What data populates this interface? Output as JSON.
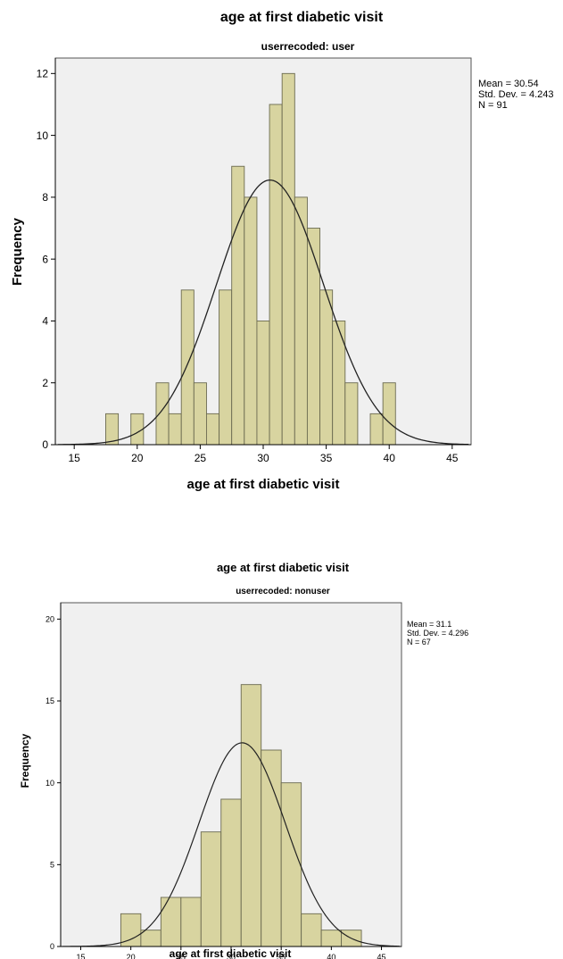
{
  "charts": [
    {
      "title": "age at first diabetic visit",
      "subtitle": "userrecoded: user",
      "xlabel": "age at first diabetic visit",
      "ylabel": "Frequency",
      "stats": [
        "Mean = 30.54",
        "Std. Dev. = 4.243",
        "N = 91"
      ]
    },
    {
      "title": "age at first diabetic visit",
      "subtitle": "userrecoded: nonuser",
      "xlabel": "age at first diabetic visit",
      "ylabel": "Frequency",
      "stats": [
        "Mean = 31.1",
        "Std. Dev. = 4.296",
        "N = 67"
      ]
    }
  ],
  "chart_data": [
    {
      "type": "bar",
      "subtype": "histogram",
      "title": "age at first diabetic visit",
      "subtitle": "userrecoded: user",
      "xlabel": "age at first diabetic visit",
      "ylabel": "Frequency",
      "xlim": [
        13.5,
        46.5
      ],
      "ylim": [
        0,
        12.5
      ],
      "xticks": [
        15,
        20,
        25,
        30,
        35,
        40,
        45
      ],
      "yticks": [
        0,
        2,
        4,
        6,
        8,
        10,
        12
      ],
      "bin_width": 1,
      "bins": [
        {
          "x0": 17.5,
          "x1": 18.5,
          "count": 1
        },
        {
          "x0": 19.5,
          "x1": 20.5,
          "count": 1
        },
        {
          "x0": 21.5,
          "x1": 22.5,
          "count": 2
        },
        {
          "x0": 22.5,
          "x1": 23.5,
          "count": 1
        },
        {
          "x0": 23.5,
          "x1": 24.5,
          "count": 5
        },
        {
          "x0": 24.5,
          "x1": 25.5,
          "count": 2
        },
        {
          "x0": 25.5,
          "x1": 26.5,
          "count": 1
        },
        {
          "x0": 26.5,
          "x1": 27.5,
          "count": 5
        },
        {
          "x0": 27.5,
          "x1": 28.5,
          "count": 9
        },
        {
          "x0": 28.5,
          "x1": 29.5,
          "count": 8
        },
        {
          "x0": 29.5,
          "x1": 30.5,
          "count": 4
        },
        {
          "x0": 30.5,
          "x1": 31.5,
          "count": 11
        },
        {
          "x0": 31.5,
          "x1": 32.5,
          "count": 12
        },
        {
          "x0": 32.5,
          "x1": 33.5,
          "count": 8
        },
        {
          "x0": 33.5,
          "x1": 34.5,
          "count": 7
        },
        {
          "x0": 34.5,
          "x1": 35.5,
          "count": 5
        },
        {
          "x0": 35.5,
          "x1": 36.5,
          "count": 4
        },
        {
          "x0": 36.5,
          "x1": 37.5,
          "count": 2
        },
        {
          "x0": 38.5,
          "x1": 39.5,
          "count": 1
        },
        {
          "x0": 39.5,
          "x1": 40.5,
          "count": 2
        }
      ],
      "normal_curve": {
        "mean": 30.54,
        "sd": 4.243,
        "n": 91
      },
      "grid": false,
      "bar_color": "#d8d4a0",
      "plot_bg": "#f0f0f0"
    },
    {
      "type": "bar",
      "subtype": "histogram",
      "title": "age at first diabetic visit",
      "subtitle": "userrecoded: nonuser",
      "xlabel": "age at first diabetic visit",
      "ylabel": "Frequency",
      "xlim": [
        13,
        47
      ],
      "ylim": [
        0,
        21
      ],
      "xticks": [
        15,
        20,
        25,
        30,
        35,
        40,
        45
      ],
      "yticks": [
        0,
        5,
        10,
        15,
        20
      ],
      "bin_width": 2,
      "bins": [
        {
          "x0": 19,
          "x1": 21,
          "count": 2
        },
        {
          "x0": 21,
          "x1": 23,
          "count": 1
        },
        {
          "x0": 23,
          "x1": 25,
          "count": 3
        },
        {
          "x0": 25,
          "x1": 27,
          "count": 3
        },
        {
          "x0": 27,
          "x1": 29,
          "count": 7
        },
        {
          "x0": 29,
          "x1": 31,
          "count": 9
        },
        {
          "x0": 31,
          "x1": 33,
          "count": 16
        },
        {
          "x0": 33,
          "x1": 35,
          "count": 12
        },
        {
          "x0": 35,
          "x1": 37,
          "count": 10
        },
        {
          "x0": 37,
          "x1": 39,
          "count": 2
        },
        {
          "x0": 39,
          "x1": 41,
          "count": 1
        },
        {
          "x0": 41,
          "x1": 43,
          "count": 1
        }
      ],
      "normal_curve": {
        "mean": 31.1,
        "sd": 4.296,
        "n": 67
      },
      "grid": false,
      "bar_color": "#d8d4a0",
      "plot_bg": "#f0f0f0"
    }
  ]
}
